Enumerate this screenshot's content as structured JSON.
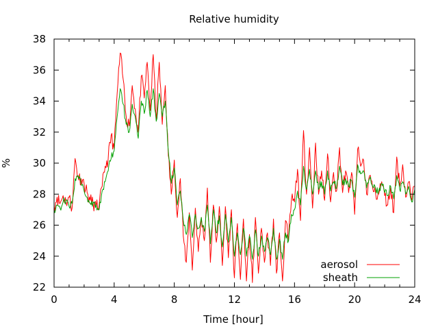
{
  "chart_data": {
    "type": "line",
    "title": "Relative humidity",
    "xlabel": "Time [hour]",
    "ylabel": "%",
    "xlim": [
      0,
      24
    ],
    "ylim": [
      22,
      38
    ],
    "x_ticks": [
      0,
      4,
      8,
      12,
      16,
      20,
      24
    ],
    "y_ticks": [
      22,
      24,
      26,
      28,
      30,
      32,
      34,
      36,
      38
    ],
    "grid": false,
    "legend_position": "bottom-right",
    "series": [
      {
        "name": "aerosol",
        "color": "#ff0000",
        "x": [
          0,
          0.2,
          0.4,
          0.6,
          0.8,
          1.0,
          1.2,
          1.4,
          1.6,
          1.8,
          2.0,
          2.2,
          2.4,
          2.6,
          2.8,
          3.0,
          3.2,
          3.4,
          3.6,
          3.8,
          4.0,
          4.2,
          4.4,
          4.6,
          4.8,
          5.0,
          5.2,
          5.4,
          5.6,
          5.8,
          6.0,
          6.2,
          6.4,
          6.6,
          6.8,
          7.0,
          7.2,
          7.4,
          7.6,
          7.8,
          8.0,
          8.2,
          8.4,
          8.6,
          8.8,
          9.0,
          9.2,
          9.4,
          9.6,
          9.8,
          10.0,
          10.2,
          10.4,
          10.6,
          10.8,
          11.0,
          11.2,
          11.4,
          11.6,
          11.8,
          12.0,
          12.2,
          12.4,
          12.6,
          12.8,
          13.0,
          13.2,
          13.4,
          13.6,
          13.8,
          14.0,
          14.2,
          14.4,
          14.6,
          14.8,
          15.0,
          15.2,
          15.4,
          15.6,
          15.8,
          16.0,
          16.2,
          16.4,
          16.6,
          16.8,
          17.0,
          17.2,
          17.4,
          17.6,
          17.8,
          18.0,
          18.2,
          18.4,
          18.6,
          18.8,
          19.0,
          19.2,
          19.4,
          19.6,
          19.8,
          20.0,
          20.2,
          20.4,
          20.6,
          20.8,
          21.0,
          21.2,
          21.4,
          21.6,
          21.8,
          22.0,
          22.2,
          22.4,
          22.6,
          22.8,
          23.0,
          23.2,
          23.4,
          23.6,
          23.8,
          24.0
        ],
        "y": [
          27.2,
          27.8,
          27.4,
          27.9,
          27.5,
          27.8,
          27.1,
          30.3,
          29.1,
          29.0,
          28.7,
          28.1,
          27.6,
          27.4,
          27.2,
          27.3,
          28.5,
          29.8,
          30.3,
          31.8,
          30.9,
          34.5,
          37.1,
          35.4,
          33.0,
          32.4,
          35.0,
          33.5,
          32.0,
          35.6,
          34.2,
          36.5,
          33.4,
          37.0,
          32.8,
          36.5,
          32.5,
          35.0,
          30.5,
          28.0,
          30.2,
          26.5,
          29.0,
          25.3,
          23.6,
          26.8,
          23.1,
          27.1,
          24.3,
          26.5,
          25.0,
          28.4,
          23.6,
          27.3,
          24.9,
          27.2,
          23.4,
          27.2,
          23.9,
          27.0,
          22.6,
          26.1,
          22.5,
          26.4,
          22.4,
          25.4,
          22.3,
          26.5,
          22.9,
          25.8,
          23.6,
          25.5,
          23.4,
          26.4,
          22.9,
          25.5,
          22.4,
          26.3,
          25.0,
          27.7,
          27.5,
          29.6,
          26.3,
          32.1,
          28.0,
          31.0,
          27.1,
          31.3,
          28.0,
          29.5,
          27.6,
          30.6,
          27.5,
          29.4,
          28.2,
          31.0,
          28.1,
          29.5,
          28.1,
          29.4,
          26.7,
          30.9,
          29.8,
          30.2,
          28.0,
          29.2,
          28.4,
          28.0,
          28.0,
          28.8,
          27.9,
          27.3,
          28.5,
          26.8,
          30.4,
          28.5,
          29.9,
          27.8,
          28.8,
          27.6,
          28.5
        ],
        "max_y": 37.1,
        "min_y": 22.3
      },
      {
        "name": "sheath",
        "color": "#00a000",
        "x": [
          0,
          0.2,
          0.4,
          0.6,
          0.8,
          1.0,
          1.2,
          1.4,
          1.6,
          1.8,
          2.0,
          2.2,
          2.4,
          2.6,
          2.8,
          3.0,
          3.2,
          3.4,
          3.6,
          3.8,
          4.0,
          4.2,
          4.4,
          4.6,
          4.8,
          5.0,
          5.2,
          5.4,
          5.6,
          5.8,
          6.0,
          6.2,
          6.4,
          6.6,
          6.8,
          7.0,
          7.2,
          7.4,
          7.6,
          7.8,
          8.0,
          8.2,
          8.4,
          8.6,
          8.8,
          9.0,
          9.2,
          9.4,
          9.6,
          9.8,
          10.0,
          10.2,
          10.4,
          10.6,
          10.8,
          11.0,
          11.2,
          11.4,
          11.6,
          11.8,
          12.0,
          12.2,
          12.4,
          12.6,
          12.8,
          13.0,
          13.2,
          13.4,
          13.6,
          13.8,
          14.0,
          14.2,
          14.4,
          14.6,
          14.8,
          15.0,
          15.2,
          15.4,
          15.6,
          15.8,
          16.0,
          16.2,
          16.4,
          16.6,
          16.8,
          17.0,
          17.2,
          17.4,
          17.6,
          17.8,
          18.0,
          18.2,
          18.4,
          18.6,
          18.8,
          19.0,
          19.2,
          19.4,
          19.6,
          19.8,
          20.0,
          20.2,
          20.4,
          20.6,
          20.8,
          21.0,
          21.2,
          21.4,
          21.6,
          21.8,
          22.0,
          22.2,
          22.4,
          22.6,
          22.8,
          23.0,
          23.2,
          23.4,
          23.6,
          23.8,
          24.0
        ],
        "y": [
          27.0,
          27.3,
          27.1,
          27.5,
          27.6,
          27.2,
          27.4,
          29.0,
          29.2,
          28.6,
          28.2,
          27.8,
          27.4,
          27.5,
          27.3,
          27.0,
          28.2,
          28.8,
          29.5,
          30.3,
          30.8,
          33.0,
          34.8,
          33.8,
          32.5,
          32.0,
          33.8,
          33.0,
          31.6,
          34.0,
          33.2,
          34.7,
          33.0,
          34.8,
          32.7,
          34.5,
          33.0,
          34.0,
          30.8,
          28.7,
          29.7,
          27.3,
          28.2,
          26.3,
          25.4,
          26.7,
          25.2,
          26.7,
          25.8,
          26.5,
          25.6,
          27.3,
          24.8,
          27.0,
          25.5,
          26.6,
          24.6,
          26.7,
          24.9,
          26.5,
          24.0,
          25.5,
          24.1,
          25.8,
          24.0,
          25.3,
          23.8,
          25.7,
          24.0,
          25.3,
          24.3,
          25.2,
          24.1,
          25.8,
          23.8,
          25.1,
          23.8,
          25.5,
          25.0,
          26.7,
          27.0,
          28.2,
          27.3,
          29.8,
          28.3,
          29.6,
          28.0,
          29.5,
          28.3,
          28.8,
          28.0,
          29.5,
          28.2,
          28.8,
          28.4,
          29.8,
          28.6,
          29.0,
          28.5,
          28.9,
          27.8,
          29.9,
          29.3,
          29.5,
          28.4,
          29.0,
          28.5,
          28.3,
          28.2,
          28.7,
          28.1,
          27.9,
          28.5,
          27.7,
          29.2,
          28.3,
          28.8,
          28.0,
          28.5,
          27.5,
          28.3
        ],
        "max_y": 34.9,
        "min_y": 23.7
      }
    ]
  }
}
